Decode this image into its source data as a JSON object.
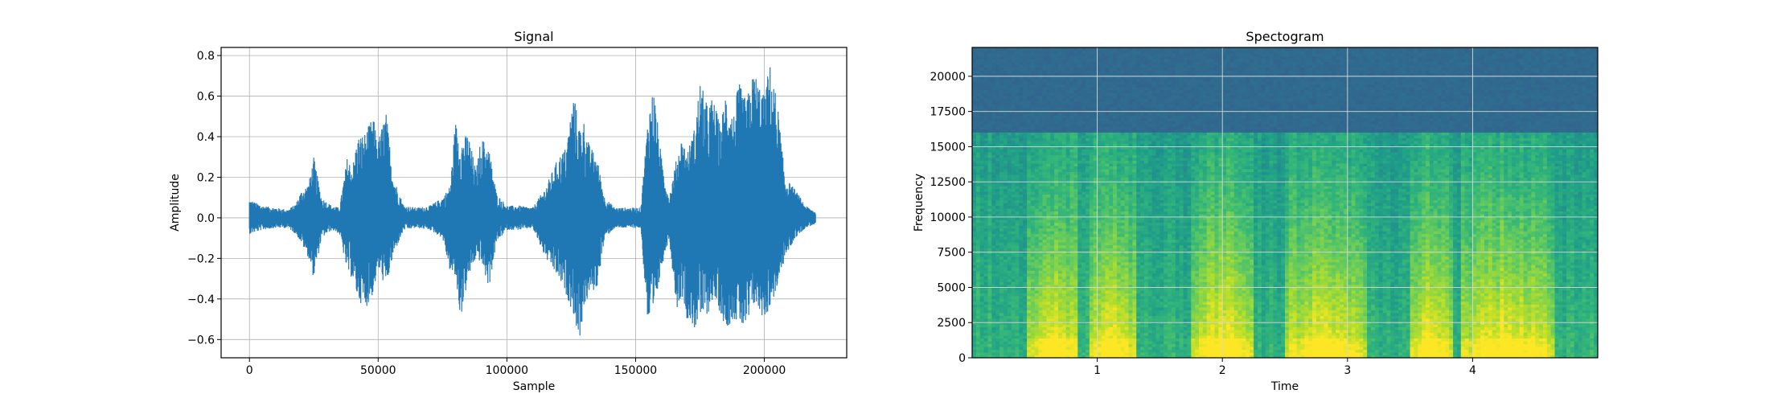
{
  "chart_data": [
    {
      "type": "line",
      "title": "Signal",
      "xlabel": "Sample",
      "ylabel": "Amplitude",
      "xlim": [
        -11000,
        232000
      ],
      "ylim": [
        -0.69,
        0.84
      ],
      "xticks": [
        0,
        50000,
        100000,
        150000,
        200000
      ],
      "xtick_labels": [
        "0",
        "50000",
        "100000",
        "150000",
        "200000"
      ],
      "yticks": [
        -0.6,
        -0.4,
        -0.2,
        0.0,
        0.2,
        0.4,
        0.6,
        0.8
      ],
      "ytick_labels": [
        "−0.6",
        "−0.4",
        "−0.2",
        "0.0",
        "0.2",
        "0.4",
        "0.6",
        "0.8"
      ],
      "grid": true,
      "color": "#1f77b4",
      "series": [
        {
          "x": [
            0,
            5000,
            10000,
            15000,
            18000,
            20000,
            23000,
            25000,
            28000,
            32000,
            35000,
            38000,
            40000,
            42000,
            45000,
            48000,
            50000,
            53000,
            56000,
            60000,
            65000,
            70000,
            75000,
            78000,
            80000,
            82000,
            85000,
            88000,
            90000,
            93000,
            96000,
            100000,
            105000,
            110000,
            115000,
            120000,
            123000,
            126000,
            128000,
            130000,
            132000,
            135000,
            138000,
            142000,
            148000,
            152000,
            155000,
            157000,
            160000,
            163000,
            166000,
            168000,
            170000,
            173000,
            175000,
            178000,
            180000,
            183000,
            185000,
            188000,
            190000,
            193000,
            196000,
            200000,
            202000,
            205000,
            208000,
            212000,
            216000,
            220000
          ],
          "upper": [
            0.09,
            0.06,
            0.05,
            0.04,
            0.07,
            0.13,
            0.17,
            0.3,
            0.1,
            0.06,
            0.05,
            0.3,
            0.25,
            0.4,
            0.42,
            0.5,
            0.38,
            0.53,
            0.2,
            0.06,
            0.05,
            0.06,
            0.1,
            0.16,
            0.48,
            0.38,
            0.42,
            0.23,
            0.4,
            0.35,
            0.12,
            0.06,
            0.06,
            0.05,
            0.15,
            0.3,
            0.35,
            0.62,
            0.45,
            0.48,
            0.36,
            0.3,
            0.1,
            0.05,
            0.05,
            0.05,
            0.53,
            0.65,
            0.3,
            0.1,
            0.3,
            0.4,
            0.32,
            0.45,
            0.68,
            0.55,
            0.6,
            0.45,
            0.63,
            0.5,
            0.67,
            0.58,
            0.73,
            0.6,
            0.77,
            0.58,
            0.2,
            0.14,
            0.06,
            0.03
          ],
          "lower": [
            -0.08,
            -0.06,
            -0.05,
            -0.05,
            -0.08,
            -0.12,
            -0.2,
            -0.3,
            -0.1,
            -0.06,
            -0.08,
            -0.27,
            -0.3,
            -0.4,
            -0.45,
            -0.38,
            -0.25,
            -0.35,
            -0.18,
            -0.06,
            -0.05,
            -0.06,
            -0.1,
            -0.27,
            -0.3,
            -0.5,
            -0.3,
            -0.2,
            -0.22,
            -0.35,
            -0.12,
            -0.06,
            -0.06,
            -0.05,
            -0.2,
            -0.3,
            -0.38,
            -0.48,
            -0.62,
            -0.45,
            -0.38,
            -0.35,
            -0.1,
            -0.05,
            -0.05,
            -0.05,
            -0.57,
            -0.5,
            -0.25,
            -0.1,
            -0.45,
            -0.38,
            -0.5,
            -0.55,
            -0.5,
            -0.48,
            -0.4,
            -0.47,
            -0.55,
            -0.5,
            -0.52,
            -0.57,
            -0.43,
            -0.5,
            -0.45,
            -0.35,
            -0.2,
            -0.1,
            -0.05,
            -0.03
          ]
        }
      ]
    },
    {
      "type": "heatmap",
      "title": "Spectogram",
      "xlabel": "Time",
      "ylabel": "Frequency",
      "xlim": [
        0,
        5.0
      ],
      "ylim": [
        0,
        22050
      ],
      "xticks": [
        1,
        2,
        3,
        4
      ],
      "xtick_labels": [
        "1",
        "2",
        "3",
        "4"
      ],
      "yticks": [
        0,
        2500,
        5000,
        7500,
        10000,
        12500,
        15000,
        17500,
        20000
      ],
      "ytick_labels": [
        "0",
        "2500",
        "5000",
        "7500",
        "10000",
        "12500",
        "15000",
        "17500",
        "20000"
      ],
      "grid": true,
      "colormap": "viridis",
      "cutoff_frequency": 16000,
      "loud_segments": [
        [
          0.45,
          0.85
        ],
        [
          0.95,
          1.3
        ],
        [
          1.75,
          2.25
        ],
        [
          2.5,
          3.15
        ],
        [
          3.5,
          3.85
        ],
        [
          3.9,
          4.65
        ]
      ]
    }
  ]
}
